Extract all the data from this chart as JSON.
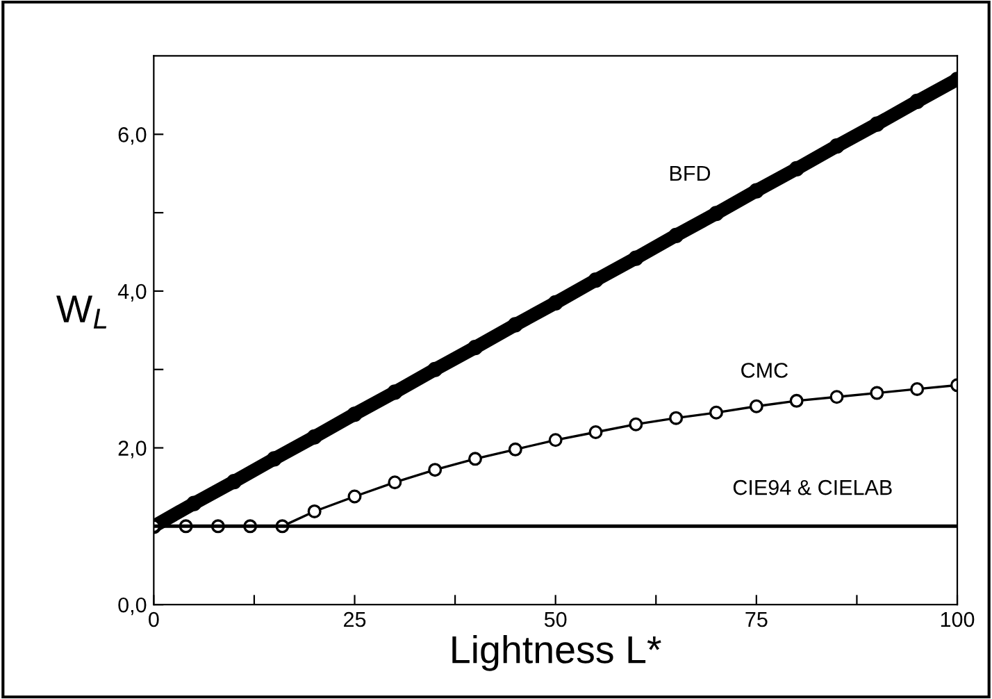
{
  "chart_data": {
    "type": "line",
    "xlabel": "Lightness L*",
    "ylabel": "W$_{L}$",
    "xlim": [
      0,
      100
    ],
    "ylim": [
      0,
      7
    ],
    "xticks": [
      0,
      {
        "value": 12.5,
        "label": null
      },
      25,
      {
        "value": 37.5,
        "label": null
      },
      50,
      {
        "value": 62.5,
        "label": null
      },
      75,
      {
        "value": 87.5,
        "label": null
      },
      100
    ],
    "yticks": [
      {
        "value": 0,
        "label": "0,0"
      },
      {
        "value": 1,
        "label": null
      },
      {
        "value": 2,
        "label": "2,0"
      },
      {
        "value": 3,
        "label": null
      },
      {
        "value": 4,
        "label": "4,0"
      },
      {
        "value": 5,
        "label": null
      },
      {
        "value": 6,
        "label": "6,0"
      }
    ],
    "grid": false,
    "legend": false,
    "series": [
      {
        "name": "BFD",
        "color": "#000000",
        "marker": "circle",
        "x": [
          0,
          5,
          10,
          15,
          20,
          25,
          30,
          35,
          40,
          45,
          50,
          55,
          60,
          65,
          70,
          75,
          80,
          85,
          90,
          95,
          100
        ],
        "values": [
          1.0,
          1.29,
          1.57,
          1.86,
          2.14,
          2.43,
          2.71,
          3.0,
          3.28,
          3.57,
          3.85,
          4.14,
          4.42,
          4.71,
          4.99,
          5.28,
          5.56,
          5.85,
          6.13,
          6.42,
          6.7
        ]
      },
      {
        "name": "CMC",
        "color": "#000000",
        "marker": "circle",
        "x": [
          0,
          4,
          8,
          12,
          16,
          20,
          25,
          30,
          35,
          40,
          45,
          50,
          55,
          60,
          65,
          70,
          75,
          80,
          85,
          90,
          95,
          100
        ],
        "values": [
          1.0,
          1.0,
          1.0,
          1.0,
          1.0,
          1.19,
          1.38,
          1.56,
          1.72,
          1.86,
          1.98,
          2.1,
          2.2,
          2.3,
          2.38,
          2.45,
          2.53,
          2.6,
          2.65,
          2.7,
          2.75,
          2.8
        ]
      },
      {
        "name": "CIE94 & CIELAB",
        "color": "#000000",
        "marker": "none",
        "x": [
          0,
          100
        ],
        "values": [
          1.0,
          1.0
        ]
      }
    ]
  }
}
